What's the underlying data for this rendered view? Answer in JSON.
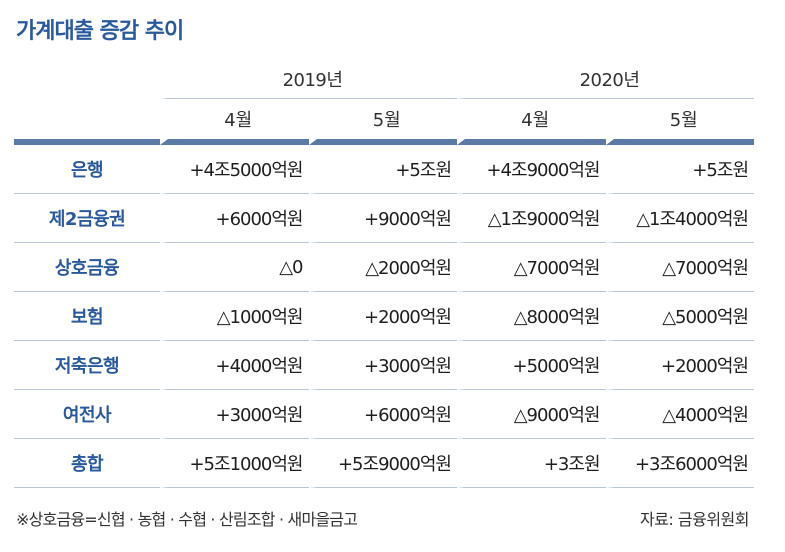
{
  "title": "가계대출 증감 추이",
  "years": [
    "2019년",
    "2020년"
  ],
  "months": [
    "4월",
    "5월",
    "4월",
    "5월"
  ],
  "rows": [
    {
      "label": "은행",
      "values": [
        "+4조5000억원",
        "+5조원",
        "+4조9000억원",
        "+5조원"
      ]
    },
    {
      "label": "제2금융권",
      "values": [
        "+6000억원",
        "+9000억원",
        "△1조9000억원",
        "△1조4000억원"
      ]
    },
    {
      "label": "상호금융",
      "values": [
        "△0",
        "△2000억원",
        "△7000억원",
        "△7000억원"
      ]
    },
    {
      "label": "보험",
      "values": [
        "△1000억원",
        "+2000억원",
        "△8000억원",
        "△5000억원"
      ]
    },
    {
      "label": "저축은행",
      "values": [
        "+4000억원",
        "+3000억원",
        "+5000억원",
        "+2000억원"
      ]
    },
    {
      "label": "여전사",
      "values": [
        "+3000억원",
        "+6000억원",
        "△9000억원",
        "△4000억원"
      ]
    },
    {
      "label": "총합",
      "values": [
        "+5조1000억원",
        "+5조9000억원",
        "+3조원",
        "+3조6000억원"
      ]
    }
  ],
  "footnote": "※상호금융=신협 · 농협 · 수협 · 산림조합 · 새마을금고",
  "source": "자료: 금융위원회"
}
